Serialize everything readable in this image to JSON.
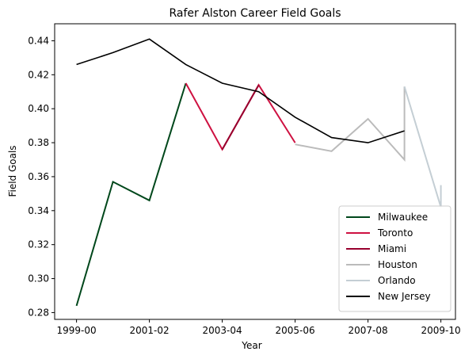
{
  "chart_data": {
    "type": "line",
    "title": "Rafer Alston Career Field Goals",
    "xlabel": "Year",
    "ylabel": "Field Goals",
    "x_tick_labels": [
      "1999-00",
      "2001-02",
      "2003-04",
      "2005-06",
      "2007-08",
      "2009-10"
    ],
    "y_ticks": [
      0.28,
      0.3,
      0.32,
      0.34,
      0.36,
      0.38,
      0.4,
      0.42,
      0.44
    ],
    "y_tick_labels": [
      "0.28",
      "0.30",
      "0.32",
      "0.34",
      "0.36",
      "0.38",
      "0.40",
      "0.42",
      "0.44"
    ],
    "xlim": [
      -0.6,
      10.4
    ],
    "ylim": [
      0.276,
      0.45
    ],
    "grid": false,
    "legend_position": "bottom-right",
    "series": [
      {
        "name": "Milwaukee",
        "color": "#00471B",
        "points": [
          [
            0,
            0.284
          ],
          [
            1,
            0.357
          ],
          [
            2,
            0.346
          ],
          [
            3,
            0.415
          ]
        ]
      },
      {
        "name": "Toronto",
        "color": "#CE1141",
        "points": [
          [
            3,
            0.415
          ],
          [
            4,
            0.376
          ],
          [
            5,
            0.414
          ],
          [
            6,
            0.38
          ]
        ]
      },
      {
        "name": "Miami",
        "color": "#98002E",
        "points": [
          [
            4,
            0.376
          ],
          [
            5,
            0.414
          ]
        ]
      },
      {
        "name": "Houston",
        "color": "#BBBBBB",
        "points": [
          [
            6,
            0.379
          ],
          [
            7,
            0.375
          ],
          [
            8,
            0.394
          ],
          [
            9,
            0.37
          ],
          [
            9,
            0.413
          ]
        ]
      },
      {
        "name": "Orlando",
        "color": "#C4CED4",
        "points": [
          [
            9,
            0.413
          ],
          [
            10,
            0.342
          ],
          [
            10,
            0.355
          ]
        ]
      },
      {
        "name": "New Jersey",
        "color": "#000000",
        "points": [
          [
            0,
            0.426
          ],
          [
            1,
            0.433
          ],
          [
            2,
            0.441
          ],
          [
            3,
            0.426
          ],
          [
            4,
            0.415
          ],
          [
            5,
            0.41
          ],
          [
            6,
            0.395
          ],
          [
            7,
            0.383
          ],
          [
            8,
            0.38
          ],
          [
            9,
            0.387
          ]
        ]
      }
    ]
  }
}
